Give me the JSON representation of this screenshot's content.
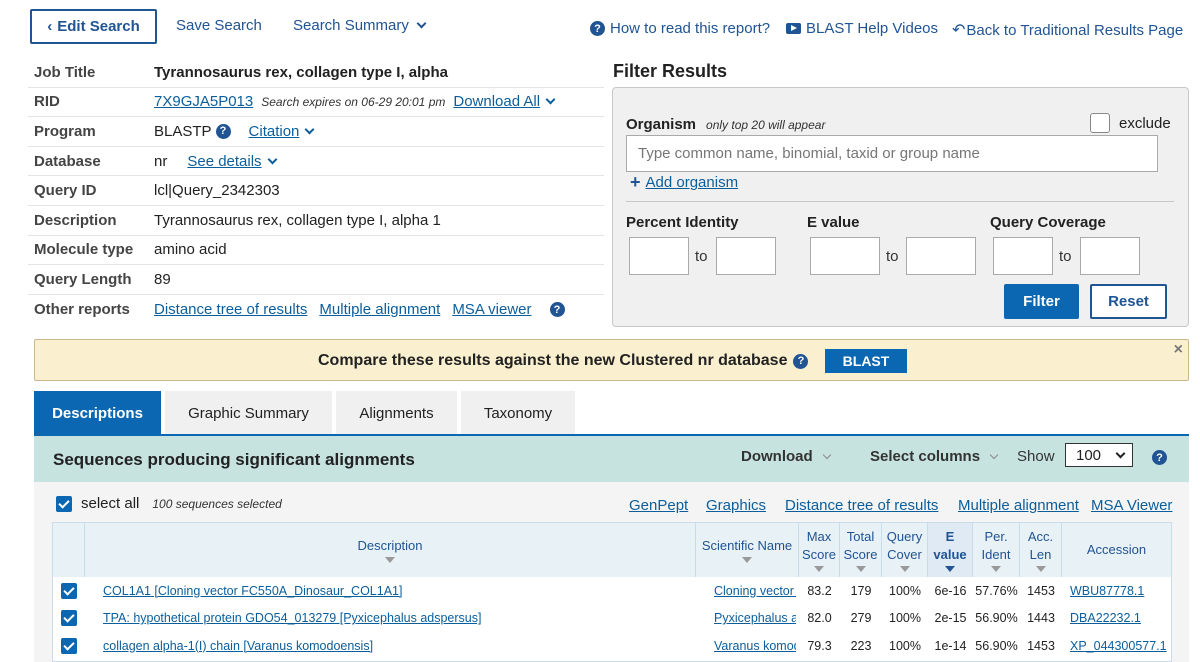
{
  "top": {
    "edit_search": "Edit Search",
    "save_search": "Save Search",
    "search_summary": "Search Summary",
    "how_to_read": "How to read this report?",
    "help_videos": "BLAST Help Videos",
    "back_traditional": "Back to Traditional Results Page"
  },
  "job": {
    "rows": [
      {
        "label": "Job Title",
        "value": "Tyrannosaurus rex, collagen type I, alpha"
      },
      {
        "label": "RID",
        "value": "7X9GJA5P013",
        "note": "Search expires on 06-29 20:01 pm",
        "extra": "Download All"
      },
      {
        "label": "Program",
        "value": "BLASTP",
        "extra": "Citation"
      },
      {
        "label": "Database",
        "value": "nr",
        "extra": "See details"
      },
      {
        "label": "Query ID",
        "value": "lcl|Query_2342303"
      },
      {
        "label": "Description",
        "value": "Tyrannosaurus rex, collagen type I, alpha 1"
      },
      {
        "label": "Molecule type",
        "value": "amino acid"
      },
      {
        "label": "Query Length",
        "value": "89"
      },
      {
        "label": "Other reports",
        "links": [
          "Distance tree of results",
          "Multiple alignment",
          "MSA viewer"
        ]
      }
    ]
  },
  "filter": {
    "title": "Filter Results",
    "organism_label": "Organism",
    "organism_note": "only top 20 will appear",
    "exclude_label": "exclude",
    "organism_placeholder": "Type common  name, binomial, taxid or group  name",
    "add_organism": "Add organism",
    "percent_identity": "Percent Identity",
    "e_value": "E value",
    "query_coverage": "Query Coverage",
    "to": "to",
    "filter_btn": "Filter",
    "reset_btn": "Reset"
  },
  "banner": {
    "text": "Compare these results against the new Clustered nr database",
    "button": "BLAST",
    "close": "×"
  },
  "tabs": [
    "Descriptions",
    "Graphic Summary",
    "Alignments",
    "Taxonomy"
  ],
  "results": {
    "title": "Sequences producing significant alignments",
    "download": "Download",
    "select_columns": "Select columns",
    "show_label": "Show",
    "show_value": "100",
    "select_all": "select all",
    "selected_count": "100 sequences selected",
    "toolbar_links": [
      "GenPept",
      "Graphics",
      "Distance tree of results",
      "Multiple alignment",
      "MSA Viewer"
    ],
    "headers": {
      "description": "Description",
      "sci_name": "Scientific Name",
      "max_score": [
        "Max",
        "Score"
      ],
      "total_score": [
        "Total",
        "Score"
      ],
      "query_cover": [
        "Query",
        "Cover"
      ],
      "e_value": [
        "E",
        "value"
      ],
      "per_ident": [
        "Per.",
        "Ident"
      ],
      "acc_len": [
        "Acc.",
        "Len"
      ],
      "accession": "Accession"
    },
    "rows": [
      {
        "description": "COL1A1 [Cloning vector FC550A_Dinosaur_COL1A1]",
        "sci_name": "Cloning vector F...",
        "max": "83.2",
        "total": "179",
        "cover": "100%",
        "evalue": "6e-16",
        "ident": "57.76%",
        "len": "1453",
        "accession": "WBU87778.1"
      },
      {
        "description": "TPA: hypothetical protein GDO54_013279 [Pyxicephalus adspersus]",
        "sci_name": "Pyxicephalus ad...",
        "max": "82.0",
        "total": "279",
        "cover": "100%",
        "evalue": "2e-15",
        "ident": "56.90%",
        "len": "1443",
        "accession": "DBA22232.1"
      },
      {
        "description": "collagen alpha-1(I) chain [Varanus komodoensis]",
        "sci_name": "Varanus komodo...",
        "max": "79.3",
        "total": "223",
        "cover": "100%",
        "evalue": "1e-14",
        "ident": "56.90%",
        "len": "1453",
        "accession": "XP_044300577.1"
      }
    ]
  }
}
